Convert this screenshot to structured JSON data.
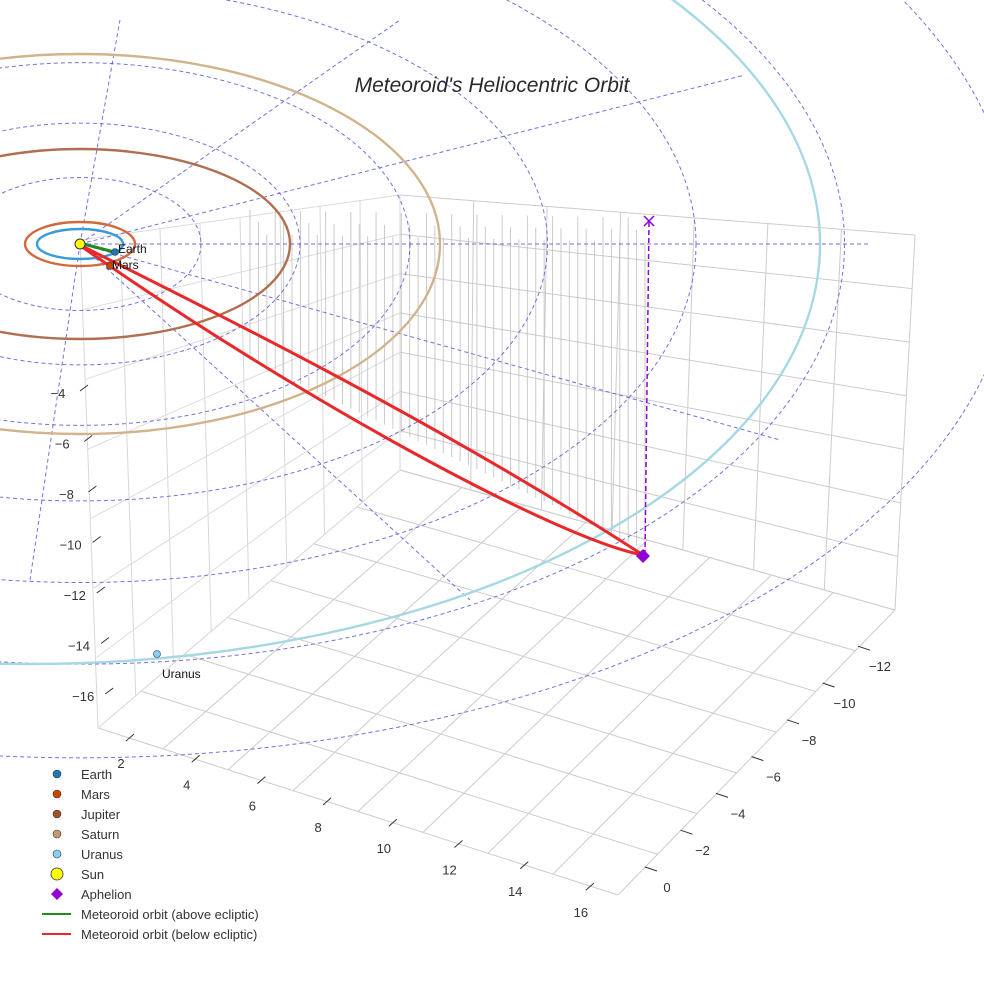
{
  "chart_data": {
    "type": "scatter3d",
    "title": "Meteoroid's Heliocentric Orbit",
    "axes": {
      "x": {
        "ticks": [
          "2",
          "4",
          "6",
          "8",
          "10",
          "12",
          "14",
          "16"
        ],
        "range": [
          0,
          17
        ]
      },
      "y": {
        "ticks": [
          "0",
          "−2",
          "−4",
          "−6",
          "−8",
          "−10",
          "−12"
        ],
        "range": [
          -13,
          1
        ]
      },
      "z": {
        "ticks": [
          "−4",
          "−6",
          "−8",
          "−10",
          "−12",
          "−14",
          "−16"
        ],
        "range": [
          -17,
          -3
        ]
      }
    },
    "planets": [
      {
        "name": "Earth",
        "label": "Earth",
        "color": "#1f77b4",
        "orbit_radius_au": 1.0,
        "orbit_color": "#3b9ad9"
      },
      {
        "name": "Mars",
        "label": "Mars",
        "color": "#cc4400",
        "orbit_radius_au": 1.52,
        "orbit_color": "#d2693c"
      },
      {
        "name": "Jupiter",
        "label": "",
        "color": "#a0522d",
        "orbit_radius_au": 5.2,
        "orbit_color": "#b07050"
      },
      {
        "name": "Saturn",
        "label": "",
        "color": "#c49a6c",
        "orbit_radius_au": 9.5,
        "orbit_color": "#d2b48c"
      },
      {
        "name": "Uranus",
        "label": "Uranus",
        "color": "#87cefa",
        "orbit_radius_au": 19.2,
        "orbit_color": "#a6d8e4"
      }
    ],
    "sun": {
      "name": "Sun",
      "color": "#ffff00"
    },
    "aphelion": {
      "name": "Aphelion",
      "color": "#9400d3"
    },
    "meteoroid_orbit": {
      "above_ecliptic": {
        "name": "Meteoroid orbit (above ecliptic)",
        "color": "#228b22"
      },
      "below_ecliptic": {
        "name": "Meteoroid orbit (below ecliptic)",
        "color": "#e8282a"
      }
    },
    "reference_grid": {
      "style": "dashed",
      "color": "#5a5ad8"
    },
    "legend_position": "bottom-left"
  },
  "legend": [
    {
      "label": "Earth",
      "symbol": "circle",
      "color": "#1f77b4"
    },
    {
      "label": "Mars",
      "symbol": "circle",
      "color": "#cc4400"
    },
    {
      "label": "Jupiter",
      "symbol": "circle",
      "color": "#a0522d"
    },
    {
      "label": "Saturn",
      "symbol": "circle",
      "color": "#c49a6c"
    },
    {
      "label": "Uranus",
      "symbol": "circle",
      "color": "#87cefa"
    },
    {
      "label": "Sun",
      "symbol": "big-circle",
      "color": "#ffff00"
    },
    {
      "label": "Aphelion",
      "symbol": "diamond",
      "color": "#9400d3"
    },
    {
      "label": "Meteoroid orbit (above ecliptic)",
      "symbol": "line",
      "color": "#228b22"
    },
    {
      "label": "Meteoroid orbit (below ecliptic)",
      "symbol": "line",
      "color": "#e8282a"
    }
  ]
}
